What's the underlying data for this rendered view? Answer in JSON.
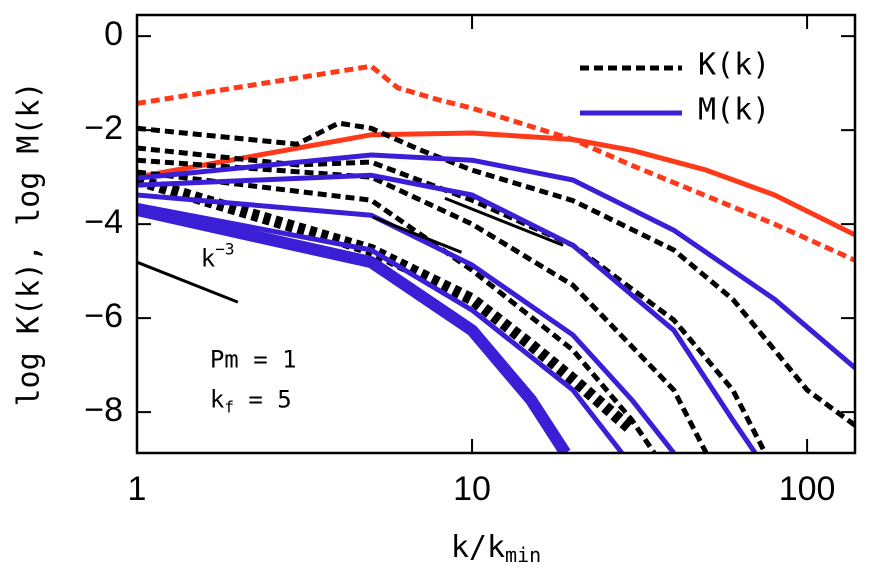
{
  "chart_data": {
    "type": "line",
    "xlabel": {
      "base": "k/k",
      "sub": "min"
    },
    "ylabel": "log K(k), log M(k)",
    "xscale": "log",
    "xlim": [
      1,
      139
    ],
    "ylim": [
      -8.87,
      0.45
    ],
    "xticks": [
      1,
      10,
      100
    ],
    "yticks": [
      0,
      {
        "value": -2,
        "label": "−2"
      },
      {
        "value": -4,
        "label": "−4"
      },
      {
        "value": -6,
        "label": "−6"
      },
      {
        "value": -8,
        "label": "−8"
      }
    ],
    "legend": [
      {
        "label": "K(k)",
        "color": "#000000",
        "style": "dashed"
      },
      {
        "label": "M(k)",
        "color": "#3a1fd6",
        "style": "solid"
      }
    ],
    "series": [
      {
        "color": "#ff3a1a",
        "style": "dashed",
        "width": 5,
        "x": [
          1,
          5,
          6,
          8,
          10,
          20,
          30,
          50,
          80,
          139
        ],
        "values": [
          -1.43,
          -0.64,
          -1.1,
          -1.36,
          -1.53,
          -2.2,
          -2.75,
          -3.4,
          -4.0,
          -4.77
        ]
      },
      {
        "color": "#ff3a1a",
        "style": "solid",
        "width": 5,
        "x": [
          1,
          5,
          10,
          20,
          30,
          50,
          80,
          139
        ],
        "values": [
          -3.0,
          -2.1,
          -2.06,
          -2.2,
          -2.43,
          -2.85,
          -3.38,
          -4.23
        ]
      },
      {
        "color": "#000000",
        "style": "dashed",
        "width": 5,
        "x": [
          1,
          3,
          4,
          5,
          7,
          10,
          20,
          40,
          60,
          80,
          100,
          139
        ],
        "values": [
          -1.96,
          -2.3,
          -1.85,
          -1.96,
          -2.42,
          -2.85,
          -3.5,
          -4.55,
          -5.6,
          -6.68,
          -7.53,
          -8.28
        ]
      },
      {
        "color": "#000000",
        "style": "dashed",
        "width": 5,
        "x": [
          1,
          3,
          5,
          10,
          20,
          40,
          60,
          75
        ],
        "values": [
          -2.38,
          -2.74,
          -2.68,
          -3.49,
          -4.45,
          -6.04,
          -7.53,
          -8.87
        ]
      },
      {
        "color": "#000000",
        "style": "dashed",
        "width": 5,
        "x": [
          1,
          5,
          10,
          20,
          40,
          50
        ],
        "values": [
          -2.64,
          -3.0,
          -4.0,
          -5.3,
          -7.53,
          -8.87
        ]
      },
      {
        "color": "#000000",
        "style": "dashed",
        "width": 5,
        "x": [
          1,
          5,
          10,
          20,
          30,
          35
        ],
        "values": [
          -2.89,
          -3.49,
          -4.98,
          -6.68,
          -8.17,
          -8.87
        ]
      },
      {
        "color": "#000000",
        "style": "dashed",
        "width": 12,
        "x": [
          1,
          5,
          10,
          15,
          20,
          30
        ],
        "values": [
          -3.06,
          -4.55,
          -5.6,
          -6.57,
          -7.3,
          -8.38
        ]
      },
      {
        "color": "#3a1fd6",
        "style": "solid",
        "width": 5,
        "x": [
          1,
          5,
          10,
          20,
          40,
          80,
          139
        ],
        "values": [
          -3.02,
          -2.53,
          -2.64,
          -3.06,
          -4.13,
          -5.6,
          -7.06
        ]
      },
      {
        "color": "#3a1fd6",
        "style": "solid",
        "width": 5,
        "x": [
          1,
          5,
          10,
          20,
          40,
          60,
          70
        ],
        "values": [
          -3.17,
          -2.96,
          -3.38,
          -4.45,
          -6.26,
          -8.17,
          -8.87
        ]
      },
      {
        "color": "#3a1fd6",
        "style": "solid",
        "width": 5,
        "x": [
          1,
          5,
          10,
          20,
          30,
          40
        ],
        "values": [
          -3.38,
          -3.81,
          -4.87,
          -6.36,
          -7.74,
          -8.87
        ]
      },
      {
        "color": "#3a1fd6",
        "style": "solid",
        "width": 5,
        "x": [
          1,
          5,
          10,
          20,
          28
        ],
        "values": [
          -3.6,
          -4.55,
          -5.83,
          -7.53,
          -8.87
        ]
      },
      {
        "color": "#3a1fd6",
        "style": "solid",
        "width": 12,
        "x": [
          1,
          5,
          10,
          15,
          19
        ],
        "values": [
          -3.7,
          -4.81,
          -6.26,
          -7.74,
          -8.87
        ]
      }
    ],
    "reference_lines": [
      {
        "x": [
          1,
          2
        ],
        "y": [
          -4.81,
          -5.66
        ]
      },
      {
        "x": [
          5.06,
          9.3
        ],
        "y": [
          -3.85,
          -4.6
        ]
      },
      {
        "x": [
          8.3,
          18.7
        ],
        "y": [
          -3.45,
          -4.45
        ]
      }
    ],
    "annotations": [
      {
        "base": "k",
        "sup": "−3",
        "x": 1.55,
        "y": -4.75
      },
      {
        "text": "Pm = 1",
        "x": 1.65,
        "y": -6.9
      },
      {
        "base": "k",
        "sub": "f",
        "rest": " = 5",
        "x": 1.65,
        "y": -7.75
      }
    ]
  }
}
